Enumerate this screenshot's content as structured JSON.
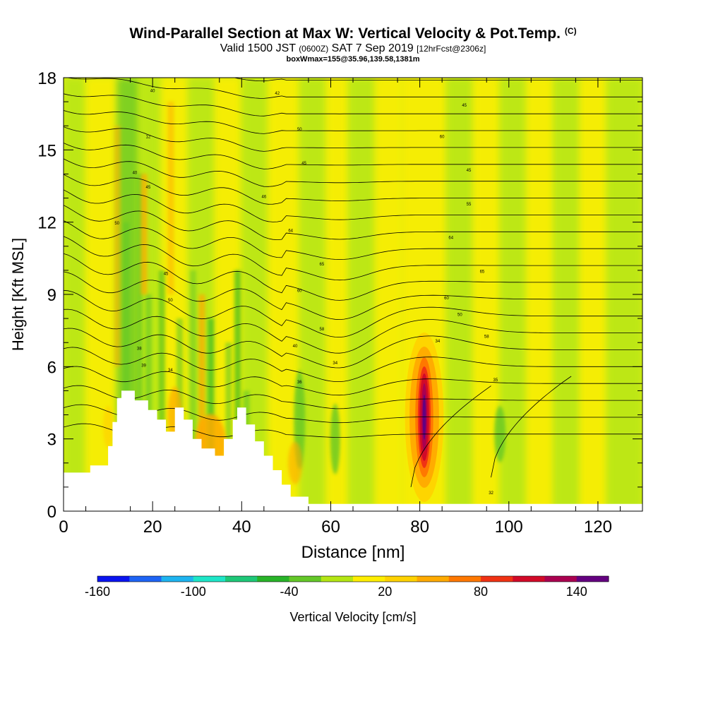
{
  "header": {
    "title": "Wind-Parallel Section at Max W: Vertical Velocity & Pot.Temp.",
    "copyright": "(C)",
    "valid_prefix": "Valid 1500 JST",
    "valid_utc": "(0600Z)",
    "valid_date": "SAT 7 Sep 2019",
    "forecast_info": "[12hrFcst@2306z]",
    "box_info": "boxWmax=155@35.96,139.58,1381m"
  },
  "chart_data": {
    "type": "heatmap",
    "xlabel": "Distance [nm]",
    "ylabel": "Height [Kft MSL]",
    "xlim": [
      0,
      130
    ],
    "ylim": [
      0,
      18
    ],
    "x_ticks": [
      0,
      20,
      40,
      60,
      80,
      100,
      120
    ],
    "y_ticks": [
      0,
      3,
      6,
      9,
      12,
      15,
      18
    ],
    "colorbar": {
      "label": "Vertical Velocity [cm/s]",
      "min": -160,
      "max": 160,
      "step": 20,
      "tick_labels": [
        "-160",
        "-100",
        "-40",
        "20",
        "80",
        "140"
      ],
      "colors": [
        "#0a14f0",
        "#1e64f5",
        "#1eb4f0",
        "#1ee6c8",
        "#1ec878",
        "#28b428",
        "#64c828",
        "#b4e614",
        "#ffee00",
        "#ffd200",
        "#ffaa00",
        "#ff7800",
        "#f03214",
        "#d20a28",
        "#aa0050",
        "#640080"
      ]
    },
    "terrain_profile": [
      [
        0,
        1.6
      ],
      [
        6,
        1.6
      ],
      [
        6,
        1.9
      ],
      [
        10,
        1.9
      ],
      [
        10,
        2.7
      ],
      [
        11,
        2.7
      ],
      [
        11,
        3.7
      ],
      [
        12,
        3.7
      ],
      [
        12,
        4.7
      ],
      [
        13,
        4.7
      ],
      [
        13,
        5.0
      ],
      [
        16,
        5.0
      ],
      [
        16,
        4.6
      ],
      [
        19,
        4.6
      ],
      [
        19,
        4.2
      ],
      [
        21,
        4.2
      ],
      [
        21,
        3.8
      ],
      [
        23,
        3.8
      ],
      [
        23,
        3.3
      ],
      [
        25,
        3.3
      ],
      [
        25,
        4.3
      ],
      [
        27,
        4.3
      ],
      [
        27,
        3.8
      ],
      [
        29,
        3.8
      ],
      [
        29,
        3.0
      ],
      [
        31,
        3.0
      ],
      [
        31,
        2.6
      ],
      [
        34,
        2.6
      ],
      [
        34,
        2.3
      ],
      [
        36,
        2.3
      ],
      [
        36,
        3.0
      ],
      [
        38,
        3.0
      ],
      [
        38,
        3.8
      ],
      [
        39,
        3.8
      ],
      [
        39,
        4.3
      ],
      [
        41,
        4.3
      ],
      [
        41,
        3.6
      ],
      [
        43,
        3.6
      ],
      [
        43,
        2.9
      ],
      [
        45,
        2.9
      ],
      [
        45,
        2.3
      ],
      [
        47,
        2.3
      ],
      [
        47,
        1.7
      ],
      [
        49,
        1.7
      ],
      [
        49,
        1.1
      ],
      [
        51,
        1.1
      ],
      [
        51,
        0.6
      ],
      [
        55,
        0.6
      ],
      [
        55,
        0.3
      ],
      [
        130,
        0.3
      ]
    ],
    "theta_contour_labels": [
      {
        "x": 20,
        "y": 17.4,
        "text": "40"
      },
      {
        "x": 48,
        "y": 17.3,
        "text": "42"
      },
      {
        "x": 90,
        "y": 16.8,
        "text": "45"
      },
      {
        "x": 53,
        "y": 15.8,
        "text": "50"
      },
      {
        "x": 85,
        "y": 15.5,
        "text": "60"
      },
      {
        "x": 19,
        "y": 15.5,
        "text": "12"
      },
      {
        "x": 54,
        "y": 14.4,
        "text": "45"
      },
      {
        "x": 91,
        "y": 14.1,
        "text": "45"
      },
      {
        "x": 16,
        "y": 14.0,
        "text": "40"
      },
      {
        "x": 19,
        "y": 13.4,
        "text": "45"
      },
      {
        "x": 45,
        "y": 13.0,
        "text": "46"
      },
      {
        "x": 91,
        "y": 12.7,
        "text": "55"
      },
      {
        "x": 12,
        "y": 11.9,
        "text": "50"
      },
      {
        "x": 51,
        "y": 11.6,
        "text": "64"
      },
      {
        "x": 87,
        "y": 11.3,
        "text": "64"
      },
      {
        "x": 58,
        "y": 10.2,
        "text": "65"
      },
      {
        "x": 94,
        "y": 9.9,
        "text": "65"
      },
      {
        "x": 23,
        "y": 9.8,
        "text": "45"
      },
      {
        "x": 53,
        "y": 9.1,
        "text": "60"
      },
      {
        "x": 86,
        "y": 8.8,
        "text": "60"
      },
      {
        "x": 24,
        "y": 8.7,
        "text": "50"
      },
      {
        "x": 89,
        "y": 8.1,
        "text": "50"
      },
      {
        "x": 58,
        "y": 7.5,
        "text": "58"
      },
      {
        "x": 95,
        "y": 7.2,
        "text": "58"
      },
      {
        "x": 84,
        "y": 7.0,
        "text": "34"
      },
      {
        "x": 17,
        "y": 6.7,
        "text": "38"
      },
      {
        "x": 52,
        "y": 6.8,
        "text": "40"
      },
      {
        "x": 18,
        "y": 6.0,
        "text": "39"
      },
      {
        "x": 61,
        "y": 6.1,
        "text": "34"
      },
      {
        "x": 24,
        "y": 5.8,
        "text": "34"
      },
      {
        "x": 53,
        "y": 5.3,
        "text": "36"
      },
      {
        "x": 97,
        "y": 5.4,
        "text": "35"
      },
      {
        "x": 96,
        "y": 0.7,
        "text": "32"
      }
    ]
  }
}
